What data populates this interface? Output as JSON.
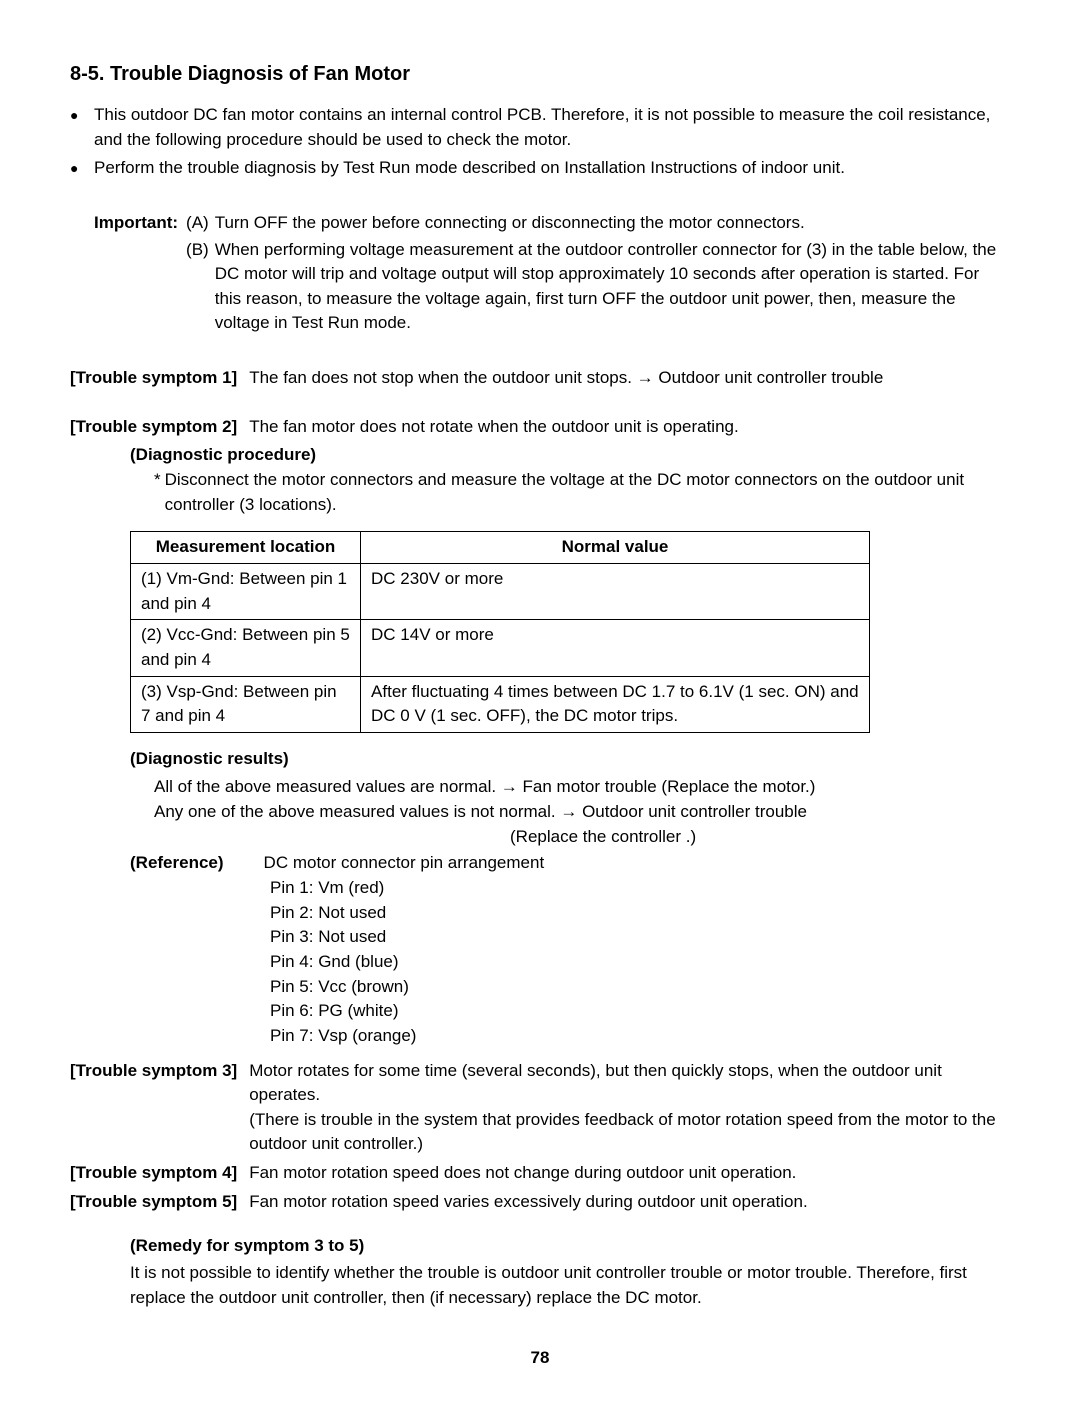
{
  "section_title": "8-5.  Trouble Diagnosis of Fan Motor",
  "bullets": [
    "This outdoor DC fan motor contains an internal control PCB. Therefore, it is not possible to measure the coil resistance, and the following procedure should be used to check the motor.",
    "Perform the trouble diagnosis by Test Run mode described on Installation Instructions of indoor unit."
  ],
  "important": {
    "label": "Important:",
    "items": [
      {
        "marker": "(A)",
        "text": "Turn OFF the power before connecting or disconnecting the motor connectors."
      },
      {
        "marker": "(B)",
        "text": "When performing voltage measurement at the outdoor controller connector for (3) in the table below, the DC motor will trip and voltage output will stop approximately 10 seconds after operation is started. For this reason, to measure the voltage again, first turn OFF the outdoor unit power, then, measure the voltage in Test Run mode."
      }
    ]
  },
  "symptom1": {
    "label": "[Trouble symptom 1]",
    "text": "The fan does not stop when the outdoor unit stops. → Outdoor unit controller trouble"
  },
  "symptom2": {
    "label": "[Trouble symptom 2]",
    "text": "The fan motor does not rotate when the outdoor unit is operating.",
    "procedure_title": "(Diagnostic procedure)",
    "procedure_star": "*",
    "procedure_text": "Disconnect the motor connectors and measure the voltage at the DC motor connectors on the outdoor unit controller (3 locations)."
  },
  "table": {
    "headers": [
      "Measurement location",
      "Normal value"
    ],
    "rows": [
      [
        "(1) Vm-Gnd: Between pin 1 and pin 4",
        "DC 230V or more"
      ],
      [
        "(2) Vcc-Gnd: Between pin 5 and pin 4",
        "DC 14V or more"
      ],
      [
        "(3) Vsp-Gnd: Between pin 7 and pin 4",
        "After fluctuating 4 times between DC 1.7 to 6.1V (1 sec. ON) and DC 0 V (1 sec. OFF), the DC motor trips."
      ]
    ]
  },
  "diag_results": {
    "title": "(Diagnostic results)",
    "line1": "All of the above measured values are normal. → Fan motor trouble (Replace the motor.)",
    "line2": "Any one of the above measured values is not normal. → Outdoor unit controller trouble",
    "line3": "(Replace the controller .)"
  },
  "reference": {
    "label": "(Reference)",
    "title": "DC motor connector pin arrangement",
    "pins": [
      "Pin 1: Vm (red)",
      "Pin 2: Not used",
      "Pin 3: Not used",
      "Pin 4: Gnd (blue)",
      "Pin 5: Vcc (brown)",
      "Pin 6: PG (white)",
      "Pin 7: Vsp (orange)"
    ]
  },
  "symptom3": {
    "label": "[Trouble symptom 3]",
    "text1": "Motor rotates for some time (several seconds), but then quickly stops, when the outdoor unit operates.",
    "text2": "(There is trouble in the system that provides feedback of motor rotation speed from the motor to the outdoor unit controller.)"
  },
  "symptom4": {
    "label": "[Trouble symptom 4]",
    "text": "Fan motor rotation speed does not change during outdoor unit operation."
  },
  "symptom5": {
    "label": "[Trouble symptom 5]",
    "text": "Fan motor rotation speed varies excessively during outdoor unit operation."
  },
  "remedy": {
    "title": "(Remedy for symptom 3 to 5)",
    "text": "It is not possible to identify whether the trouble is outdoor unit controller trouble or motor trouble. Therefore, first replace the outdoor unit controller, then (if necessary) replace the DC motor."
  },
  "page_number": "78"
}
